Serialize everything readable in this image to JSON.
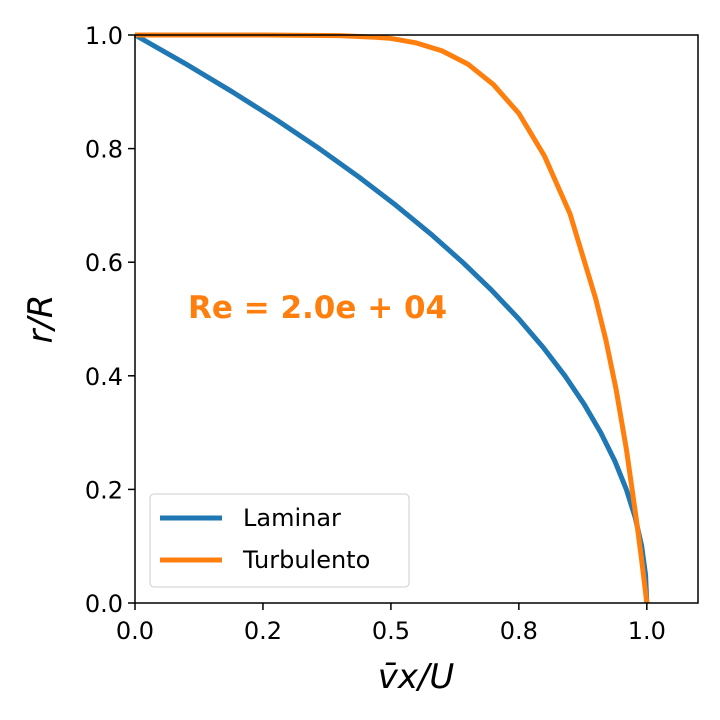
{
  "chart_data": {
    "type": "line",
    "xlabel": "v̄x/U",
    "ylabel": "r/R",
    "xlim": [
      0.0,
      1.1
    ],
    "ylim": [
      0.0,
      1.0
    ],
    "xticks": [
      0.0,
      0.25,
      0.5,
      0.75,
      1.0
    ],
    "xtick_labels": [
      "0.0",
      "0.2",
      "0.5",
      "0.8",
      "1.0"
    ],
    "yticks": [
      0.0,
      0.2,
      0.4,
      0.6,
      0.8,
      1.0
    ],
    "ytick_labels": [
      "0.0",
      "0.2",
      "0.4",
      "0.6",
      "0.8",
      "1.0"
    ],
    "grid": false,
    "legend_position": "lower-left",
    "annotation": {
      "text": "Re = 2.0e + 04",
      "color": "#ff7f0e"
    },
    "series": [
      {
        "name": "Laminar",
        "color": "#1f77b4",
        "x": [
          0.0,
          0.0975,
          0.19,
          0.2775,
          0.36,
          0.4375,
          0.51,
          0.5775,
          0.64,
          0.6975,
          0.75,
          0.7975,
          0.84,
          0.8775,
          0.91,
          0.9375,
          0.96,
          0.9775,
          0.99,
          0.9975,
          1.0
        ],
        "y": [
          1.0,
          0.95,
          0.9,
          0.85,
          0.8,
          0.75,
          0.7,
          0.65,
          0.6,
          0.55,
          0.5,
          0.45,
          0.4,
          0.35,
          0.3,
          0.25,
          0.2,
          0.15,
          0.1,
          0.05,
          0.0
        ]
      },
      {
        "name": "Turbulento",
        "color": "#ff7f0e",
        "x": [
          0.0,
          0.25,
          0.4,
          0.47,
          0.5,
          0.55,
          0.6,
          0.65,
          0.7,
          0.75,
          0.8,
          0.85,
          0.9,
          0.92,
          0.94,
          0.96,
          0.97,
          0.98,
          0.99,
          1.0
        ],
        "y": [
          1.0,
          1.0,
          0.999,
          0.996,
          0.994,
          0.986,
          0.972,
          0.949,
          0.913,
          0.862,
          0.787,
          0.685,
          0.536,
          0.463,
          0.376,
          0.271,
          0.208,
          0.144,
          0.075,
          0.0
        ]
      }
    ]
  }
}
